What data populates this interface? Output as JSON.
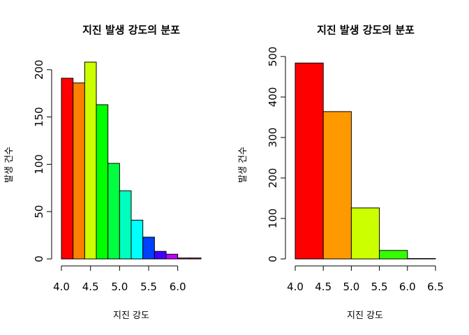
{
  "chart_data": [
    {
      "type": "bar",
      "title": "지진 발생 강도의 분포",
      "xlabel": "지진 강도",
      "ylabel": "발생 건수",
      "bin_edges": [
        4.0,
        4.2,
        4.4,
        4.6,
        4.8,
        5.0,
        5.2,
        5.4,
        5.6,
        5.8,
        6.0,
        6.2,
        6.4
      ],
      "values": [
        191,
        186,
        208,
        163,
        101,
        72,
        41,
        23,
        8,
        5,
        1,
        1
      ],
      "colors": [
        "#FF0000",
        "#FF8000",
        "#CCFF00",
        "#00FF00",
        "#00FF40",
        "#00FFBF",
        "#00FFFF",
        "#0040FF",
        "#4000FF",
        "#BF00FF",
        "#FF00BF",
        "#FF0040"
      ],
      "xticks": [
        "4.0",
        "4.5",
        "5.0",
        "5.5",
        "6.0"
      ],
      "yticks": [
        "0",
        "50",
        "100",
        "150",
        "200"
      ],
      "xlim": [
        4.0,
        6.4
      ],
      "ylim": [
        0,
        208
      ]
    },
    {
      "type": "bar",
      "title": "지진 발생 강도의 분포",
      "xlabel": "지진 강도",
      "ylabel": "발생 건수",
      "bin_edges": [
        4.0,
        4.5,
        5.0,
        5.5,
        6.0,
        6.5
      ],
      "values": [
        484,
        364,
        126,
        21,
        1
      ],
      "colors": [
        "#FF0000",
        "#FF9900",
        "#CCFF00",
        "#33FF00",
        "#00FF66"
      ],
      "xticks": [
        "4.0",
        "4.5",
        "5.0",
        "5.5",
        "6.0",
        "6.5"
      ],
      "yticks": [
        "0",
        "100",
        "200",
        "300",
        "400",
        "500"
      ],
      "xlim": [
        4.0,
        6.5
      ],
      "ylim": [
        0,
        500
      ]
    }
  ]
}
